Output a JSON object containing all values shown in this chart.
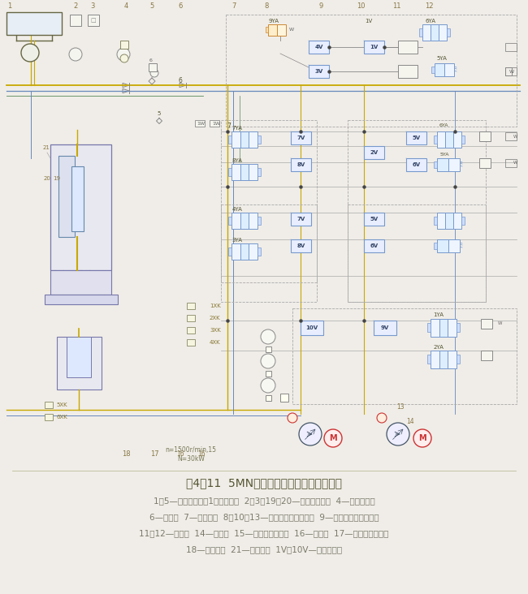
{
  "title": "图4－11  5MN双动拉伸液压机液压控制系统",
  "caption_line1": "1、5—液控单向阀（1为充液阀）  2、3、19、20—压力表及开关  4—压力继电器",
  "caption_line2a": "6—顺序阀  7—拉伸阀块  8、10、13—",
  "caption_line2b": "三位四通电磁换向阀",
  "caption_line2c": "  9—二位四通电磁换向阀",
  "caption_line3": "11、12—溢流阀  14—滤油器  15—压力补偿变量泵  16—单向阀  17—调压、卸荷阀块",
  "caption_line4": "18—顶出阀块  21—压边阀块  1V～10V—逻辑插装阀",
  "bg_color": "#f0ede8",
  "diagram_bg": "#f2efea",
  "line_yellow": "#c8a800",
  "line_blue": "#6688bb",
  "line_green": "#558855",
  "line_gray": "#888888",
  "line_light": "#aaaaaa",
  "valve_blue": "#7799cc",
  "valve_orange": "#cc8833",
  "text_dark": "#555533",
  "text_gray": "#666666",
  "text_brown": "#8b7355",
  "caption_gray": "#7a7a6a",
  "highlight_orange": "#cc7700",
  "title_color": "#555533"
}
